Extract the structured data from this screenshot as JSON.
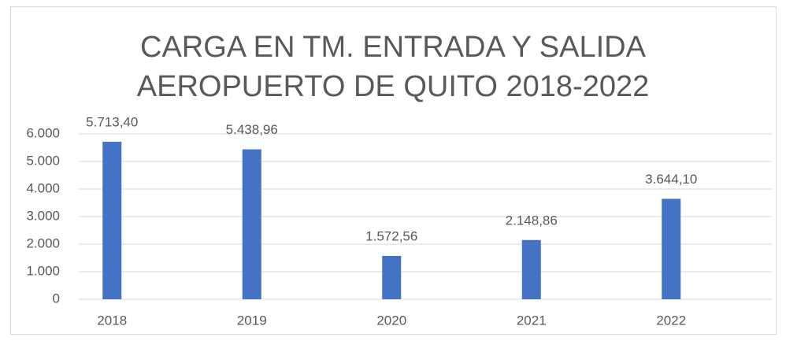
{
  "chart_data": {
    "type": "bar",
    "title": [
      "CARGA EN TM. ENTRADA Y SALIDA",
      "AEROPUERTO DE QUITO  2018-2022"
    ],
    "categories": [
      "2018",
      "2019",
      "2020",
      "2021",
      "2022"
    ],
    "values": [
      5713.4,
      5438.96,
      1572.56,
      2148.86,
      3644.1
    ],
    "value_labels": [
      "5.713,40",
      "5.438,96",
      "1.572,56",
      "2.148,86",
      "3.644,10"
    ],
    "color": "#4472c4",
    "ylim": [
      0,
      6000
    ],
    "yticks": [
      0,
      {
        "value": 1000,
        "label": "1.000"
      },
      {
        "value": 2000,
        "label": "2.000"
      },
      {
        "value": 3000,
        "label": "3.000"
      },
      {
        "value": 4000,
        "label": "4.000"
      },
      {
        "value": 5000,
        "label": "5.000"
      },
      {
        "value": 6000,
        "label": "6.000"
      }
    ],
    "grid": true
  }
}
